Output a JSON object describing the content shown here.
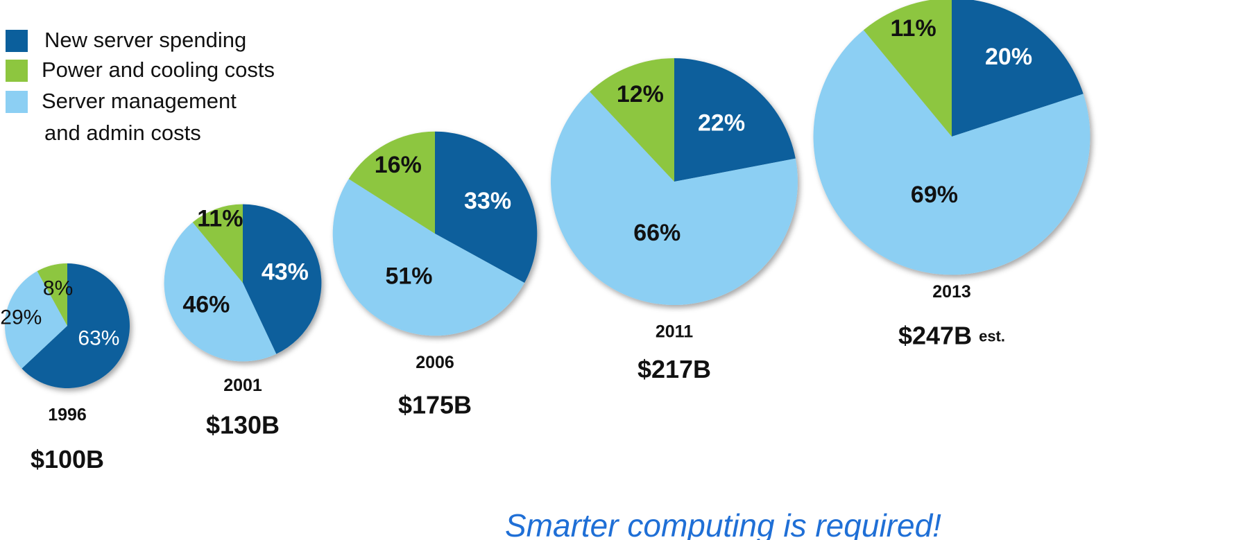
{
  "chart_data": {
    "type": "pie",
    "categories": [
      "New server spending",
      "Power and cooling costs",
      "Server management and admin costs"
    ],
    "colors": [
      "#0b5f9c",
      "#8dc63f",
      "#8ccff3"
    ],
    "series": [
      {
        "name": "1996",
        "total": 100,
        "total_label": "$100B",
        "values": [
          63,
          8,
          29
        ],
        "value_labels": [
          "63%",
          "8%",
          "29%"
        ]
      },
      {
        "name": "2001",
        "total": 130,
        "total_label": "$130B",
        "values": [
          43,
          11,
          46
        ],
        "value_labels": [
          "43%",
          "11%",
          "46%"
        ]
      },
      {
        "name": "2006",
        "total": 175,
        "total_label": "$175B",
        "values": [
          33,
          16,
          51
        ],
        "value_labels": [
          "33%",
          "16%",
          "51%"
        ]
      },
      {
        "name": "2011",
        "total": 217,
        "total_label": "$217B",
        "values": [
          22,
          12,
          66
        ],
        "value_labels": [
          "22%",
          "12%",
          "66%"
        ]
      },
      {
        "name": "2013",
        "total": 247,
        "total_label": "$247B",
        "total_note": "est.",
        "values": [
          20,
          11,
          69
        ],
        "value_labels": [
          "20%",
          "11%",
          "69%"
        ]
      }
    ],
    "annotation": "Smarter computing is required!"
  }
}
